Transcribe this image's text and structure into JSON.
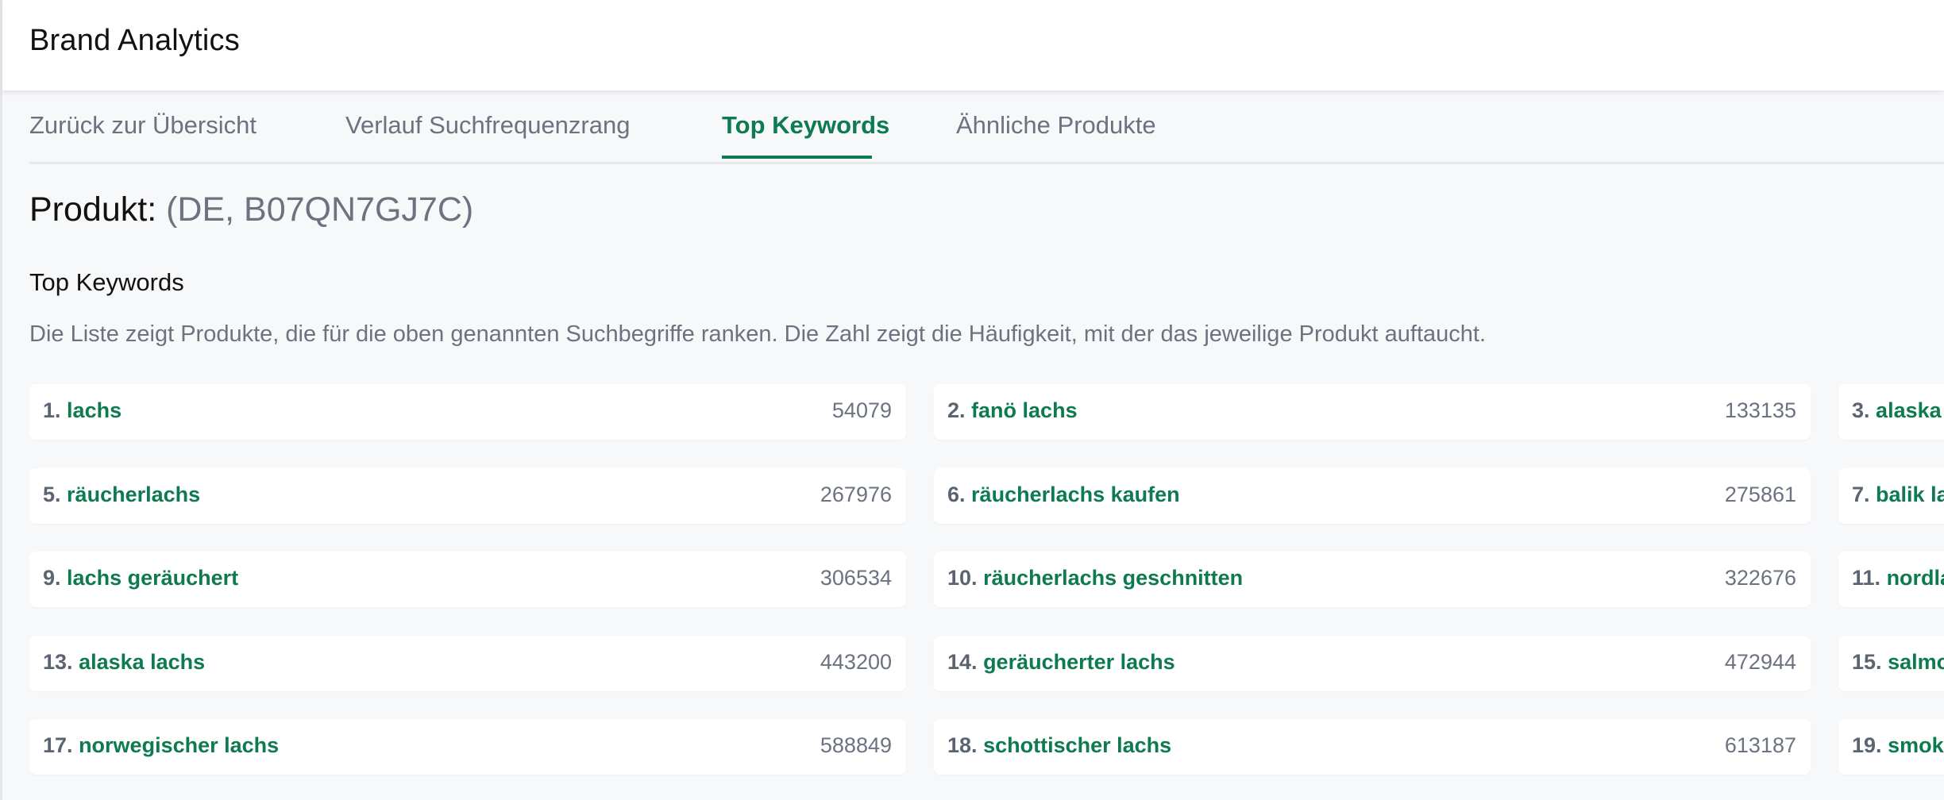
{
  "header": {
    "title": "Brand Analytics"
  },
  "tabs": [
    {
      "label": "Zurück zur Übersicht",
      "active": false
    },
    {
      "label": "Verlauf Suchfrequenzrang",
      "active": false
    },
    {
      "label": "Top Keywords",
      "active": true
    },
    {
      "label": "Ähnliche Produkte",
      "active": false
    }
  ],
  "product": {
    "label": "Produkt:",
    "identifier": "(DE, B07QN7GJ7C)"
  },
  "section": {
    "title": "Top Keywords",
    "description": "Die Liste zeigt Produkte, die für die oben genannten Suchbegriffe ranken. Die Zahl zeigt die Häufigkeit, mit der das jeweilige Produkt auftaucht."
  },
  "keywords": [
    {
      "rank": "1.",
      "keyword": "lachs",
      "count": "54079"
    },
    {
      "rank": "2.",
      "keyword": "fanö lachs",
      "count": "133135"
    },
    {
      "rank": "3.",
      "keyword": "alaska",
      "count": ""
    },
    {
      "rank": "5.",
      "keyword": "räucherlachs",
      "count": "267976"
    },
    {
      "rank": "6.",
      "keyword": "räucherlachs kaufen",
      "count": "275861"
    },
    {
      "rank": "7.",
      "keyword": "balik la",
      "count": ""
    },
    {
      "rank": "9.",
      "keyword": "lachs geräuchert",
      "count": "306534"
    },
    {
      "rank": "10.",
      "keyword": "räucherlachs geschnitten",
      "count": "322676"
    },
    {
      "rank": "11.",
      "keyword": "nordla",
      "count": ""
    },
    {
      "rank": "13.",
      "keyword": "alaska lachs",
      "count": "443200"
    },
    {
      "rank": "14.",
      "keyword": "geräucherter lachs",
      "count": "472944"
    },
    {
      "rank": "15.",
      "keyword": "salmo",
      "count": ""
    },
    {
      "rank": "17.",
      "keyword": "norwegischer lachs",
      "count": "588849"
    },
    {
      "rank": "18.",
      "keyword": "schottischer lachs",
      "count": "613187"
    },
    {
      "rank": "19.",
      "keyword": "smok",
      "count": ""
    }
  ]
}
